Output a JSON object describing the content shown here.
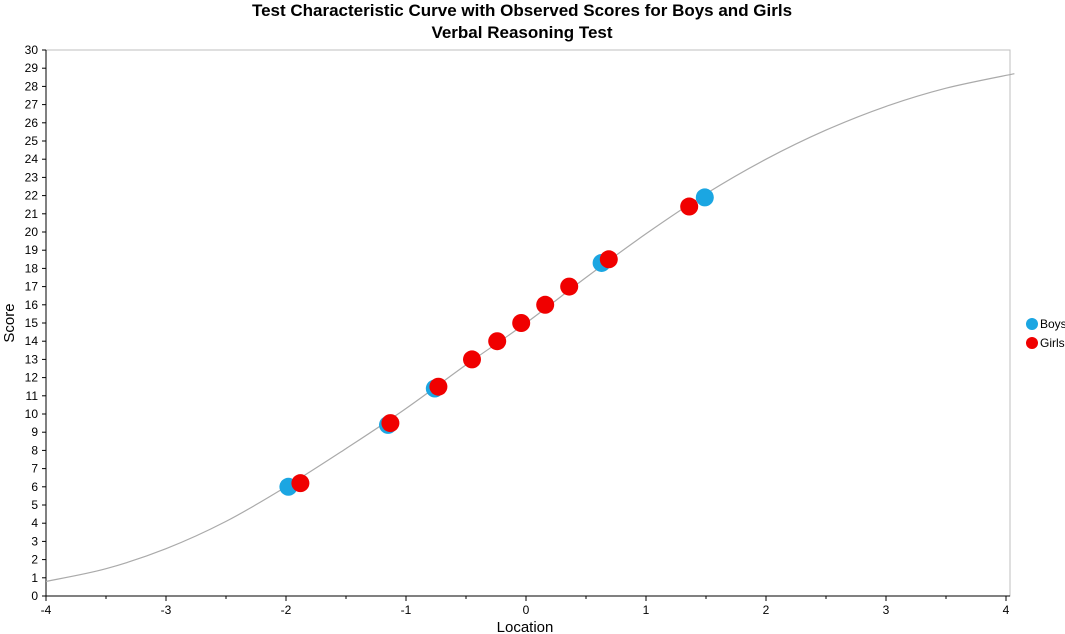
{
  "chart_data": {
    "type": "scatter",
    "title": "Test Characteristic Curve with Observed Scores for Boys and Girls",
    "subtitle": "Verbal Reasoning Test",
    "xlabel": "Location",
    "ylabel": "Score",
    "xlim": [
      -4,
      4
    ],
    "ylim": [
      0,
      30
    ],
    "x_ticks": [
      -4,
      -3,
      -2,
      -1,
      0,
      1,
      2,
      3,
      4
    ],
    "y_ticks": [
      0,
      1,
      2,
      3,
      4,
      5,
      6,
      7,
      8,
      9,
      10,
      11,
      12,
      13,
      14,
      15,
      16,
      17,
      18,
      19,
      20,
      21,
      22,
      23,
      24,
      25,
      26,
      27,
      28,
      29,
      30
    ],
    "grid": false,
    "legend_position": "right",
    "curve": {
      "color": "#aaaaaa",
      "x": [
        -4,
        -3.5,
        -3,
        -2.5,
        -2,
        -1.5,
        -1,
        -0.5,
        0,
        0.5,
        1,
        1.5,
        2,
        2.5,
        3,
        3.5,
        4.07
      ],
      "y": [
        0.8,
        1.5,
        2.6,
        4.1,
        6.0,
        8.1,
        10.3,
        12.7,
        15.0,
        17.5,
        19.9,
        22.1,
        24.0,
        25.6,
        26.9,
        27.9,
        28.7
      ]
    },
    "series": [
      {
        "name": "Boys",
        "color": "#1ba6e2",
        "points": [
          {
            "x": -1.98,
            "y": 6.0
          },
          {
            "x": -1.15,
            "y": 9.4
          },
          {
            "x": -0.76,
            "y": 11.4
          },
          {
            "x": 0.63,
            "y": 18.3
          },
          {
            "x": 1.49,
            "y": 21.9
          }
        ]
      },
      {
        "name": "Girls",
        "color": "#f00000",
        "points": [
          {
            "x": -1.88,
            "y": 6.2
          },
          {
            "x": -1.13,
            "y": 9.5
          },
          {
            "x": -0.73,
            "y": 11.5
          },
          {
            "x": -0.45,
            "y": 13.0
          },
          {
            "x": -0.24,
            "y": 14.0
          },
          {
            "x": -0.04,
            "y": 15.0
          },
          {
            "x": 0.16,
            "y": 16.0
          },
          {
            "x": 0.36,
            "y": 17.0
          },
          {
            "x": 0.69,
            "y": 18.5
          },
          {
            "x": 1.36,
            "y": 21.4
          }
        ]
      }
    ]
  }
}
